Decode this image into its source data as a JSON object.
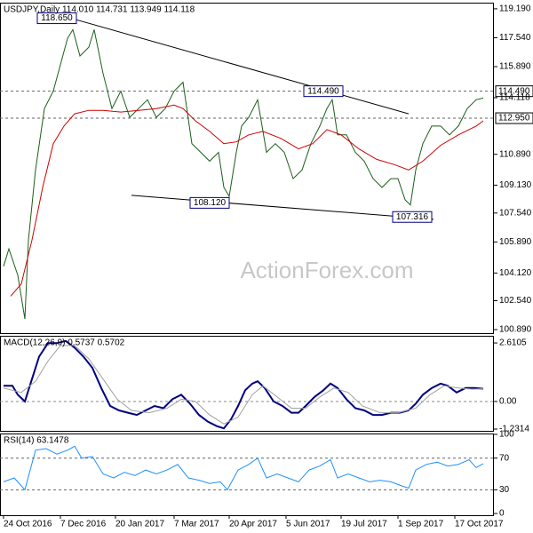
{
  "chart_data": [
    {
      "type": "line",
      "title": "USDJPY,Daily  114.010 114.731 113.949 114.118",
      "watermark": "ActionForex.com",
      "xlim": [
        -2,
        276
      ],
      "ylim": [
        100.69,
        119.54
      ],
      "yticks": [
        {
          "value": 119.19,
          "label": "119.190"
        },
        {
          "value": 117.54,
          "label": "117.540"
        },
        {
          "value": 115.89,
          "label": "115.890"
        },
        {
          "value": 110.89,
          "label": "110.890"
        },
        {
          "value": 109.13,
          "label": "109.130"
        },
        {
          "value": 107.54,
          "label": "107.540"
        },
        {
          "value": 105.89,
          "label": "105.890"
        },
        {
          "value": 104.12,
          "label": "104.120"
        },
        {
          "value": 102.54,
          "label": "102.540"
        },
        {
          "value": 100.89,
          "label": "100.890"
        }
      ],
      "levels": [
        {
          "value": 114.49,
          "label": "114.490"
        },
        {
          "value": 112.95,
          "label": "112.950"
        }
      ],
      "current": {
        "value": 114.118,
        "label": "114.118"
      },
      "annotations": [
        {
          "x": 20,
          "y": 118.65,
          "label": "118.650"
        },
        {
          "x": 170,
          "y": 114.49,
          "label": "114.490"
        },
        {
          "x": 106,
          "y": 108.12,
          "label": "108.120"
        },
        {
          "x": 220,
          "y": 107.316,
          "label": "107.316"
        }
      ],
      "trendlines": [
        {
          "x": [
            38,
            228
          ],
          "y": [
            118.65,
            113.2
          ]
        },
        {
          "x": [
            72,
            242
          ],
          "y": [
            108.55,
            107.18
          ]
        }
      ],
      "series": [
        {
          "color": "#1a5e1a",
          "x": [
            0,
            3,
            8,
            12,
            14,
            18,
            23,
            28,
            32,
            36,
            39,
            43,
            48,
            51,
            56,
            61,
            66,
            71,
            76,
            81,
            86,
            91,
            96,
            101,
            106,
            111,
            116,
            121,
            124,
            127,
            131,
            134,
            138,
            143,
            148,
            153,
            158,
            163,
            168,
            173,
            178,
            182,
            185,
            188,
            193,
            198,
            203,
            208,
            213,
            218,
            222,
            226,
            229,
            232,
            236,
            241,
            246,
            251,
            256,
            261,
            266,
            270
          ],
          "values": [
            104.5,
            105.5,
            104.0,
            101.5,
            106.0,
            110.0,
            113.5,
            114.5,
            116.0,
            117.5,
            118.0,
            116.5,
            117.0,
            118.0,
            115.5,
            113.5,
            114.5,
            113.0,
            113.5,
            114.0,
            113.0,
            113.5,
            114.5,
            115.0,
            111.5,
            111.0,
            110.5,
            111.0,
            109.0,
            108.5,
            111.0,
            112.5,
            113.0,
            114.0,
            111.0,
            111.5,
            111.0,
            109.5,
            110.0,
            111.5,
            112.5,
            113.5,
            114.0,
            112.0,
            112.0,
            111.0,
            110.5,
            109.5,
            109.0,
            109.5,
            109.5,
            108.3,
            108.0,
            110.0,
            111.5,
            112.5,
            112.5,
            112.0,
            112.5,
            113.5,
            114.0,
            114.1
          ]
        },
        {
          "color": "#d00000",
          "x": [
            4,
            10,
            16,
            22,
            28,
            34,
            40,
            48,
            56,
            66,
            76,
            86,
            96,
            101,
            108,
            116,
            124,
            131,
            138,
            146,
            156,
            166,
            174,
            182,
            190,
            200,
            210,
            220,
            228,
            236,
            246,
            256,
            266,
            270
          ],
          "values": [
            102.8,
            103.5,
            106.0,
            109.0,
            111.5,
            112.5,
            113.2,
            113.4,
            113.4,
            113.3,
            113.4,
            113.5,
            113.7,
            113.5,
            112.8,
            112.2,
            111.5,
            111.6,
            112.0,
            112.2,
            111.8,
            111.2,
            111.5,
            112.3,
            112.0,
            111.2,
            110.6,
            110.3,
            110.0,
            110.5,
            111.4,
            112.0,
            112.5,
            112.8
          ]
        }
      ]
    },
    {
      "type": "line",
      "title": "MACD(12,26,9) 0.5737 0.5702",
      "xlim": [
        -2,
        276
      ],
      "ylim": [
        -1.31,
        2.93
      ],
      "yticks": [
        2.6105,
        {
          "value": 0,
          "label": "0.00"
        },
        -1.2314
      ],
      "zero_line": 0,
      "series": [
        {
          "color": "#000080",
          "x": [
            0,
            5,
            8,
            12,
            16,
            20,
            25,
            30,
            35,
            40,
            45,
            50,
            55,
            60,
            65,
            70,
            75,
            80,
            85,
            90,
            95,
            100,
            105,
            110,
            115,
            120,
            124,
            128,
            132,
            136,
            140,
            143,
            147,
            152,
            157,
            162,
            166,
            170,
            175,
            180,
            184,
            188,
            193,
            198,
            203,
            208,
            213,
            218,
            223,
            228,
            232,
            236,
            241,
            246,
            250,
            255,
            260,
            265,
            270
          ],
          "values": [
            0.7,
            0.7,
            0.3,
            0.0,
            1.0,
            2.0,
            2.6,
            2.6,
            2.7,
            2.4,
            2.0,
            1.5,
            0.6,
            -0.2,
            -0.4,
            -0.5,
            -0.6,
            -0.4,
            -0.2,
            -0.3,
            0.1,
            0.3,
            -0.1,
            -0.6,
            -0.9,
            -1.1,
            -1.2,
            -0.8,
            -0.2,
            0.5,
            0.8,
            0.9,
            0.6,
            0.0,
            -0.2,
            -0.5,
            -0.5,
            -0.2,
            0.2,
            0.5,
            0.8,
            0.6,
            0.1,
            -0.3,
            -0.4,
            -0.6,
            -0.6,
            -0.5,
            -0.5,
            -0.4,
            -0.1,
            0.3,
            0.6,
            0.8,
            0.7,
            0.4,
            0.6,
            0.6,
            0.57
          ]
        },
        {
          "color": "#a0a0a0",
          "x": [
            0,
            10,
            18,
            25,
            32,
            40,
            48,
            56,
            64,
            72,
            82,
            92,
            100,
            108,
            116,
            124,
            132,
            140,
            146,
            154,
            162,
            170,
            178,
            186,
            194,
            202,
            212,
            222,
            232,
            240,
            248,
            256,
            264,
            270
          ],
          "values": [
            0.6,
            0.4,
            0.9,
            1.8,
            2.5,
            2.5,
            1.9,
            1.0,
            0.1,
            -0.4,
            -0.5,
            -0.3,
            0.1,
            0.0,
            -0.6,
            -1.0,
            -0.7,
            0.3,
            0.7,
            0.2,
            -0.3,
            -0.3,
            0.2,
            0.6,
            0.4,
            -0.2,
            -0.5,
            -0.5,
            -0.3,
            0.3,
            0.7,
            0.6,
            0.55,
            0.57
          ]
        }
      ]
    },
    {
      "type": "line",
      "title": "RSI(14) 63.1478",
      "xlim": [
        -2,
        276
      ],
      "ylim": [
        -2.2,
        101.1
      ],
      "yticks": [
        100,
        70,
        30,
        0
      ],
      "levels": [
        70,
        30
      ],
      "xticks": [
        {
          "value": 0,
          "label": "24 Oct 2016"
        },
        {
          "value": 32,
          "label": "7 Dec 2016"
        },
        {
          "value": 63,
          "label": "20 Jan 2017"
        },
        {
          "value": 96,
          "label": "7 Mar 2017"
        },
        {
          "value": 127,
          "label": "20 Apr 2017"
        },
        {
          "value": 159,
          "label": "5 Jun 2017"
        },
        {
          "value": 190,
          "label": "19 Jul 2017"
        },
        {
          "value": 222,
          "label": "1 Sep 2017"
        },
        {
          "value": 254,
          "label": "17 Oct 2017"
        }
      ],
      "series": [
        {
          "color": "#1e90ff",
          "x": [
            0,
            6,
            12,
            18,
            24,
            30,
            36,
            40,
            44,
            50,
            56,
            62,
            68,
            74,
            80,
            86,
            92,
            98,
            104,
            110,
            116,
            122,
            126,
            132,
            138,
            143,
            148,
            154,
            160,
            166,
            172,
            178,
            184,
            188,
            194,
            200,
            206,
            212,
            218,
            224,
            228,
            232,
            238,
            244,
            250,
            256,
            262,
            266,
            270
          ],
          "values": [
            40,
            45,
            30,
            80,
            82,
            75,
            80,
            85,
            70,
            72,
            50,
            45,
            52,
            48,
            55,
            50,
            55,
            62,
            45,
            42,
            38,
            40,
            30,
            55,
            62,
            70,
            45,
            50,
            45,
            40,
            55,
            60,
            68,
            45,
            50,
            45,
            40,
            42,
            40,
            35,
            32,
            55,
            62,
            65,
            60,
            62,
            68,
            58,
            63
          ]
        }
      ]
    }
  ]
}
